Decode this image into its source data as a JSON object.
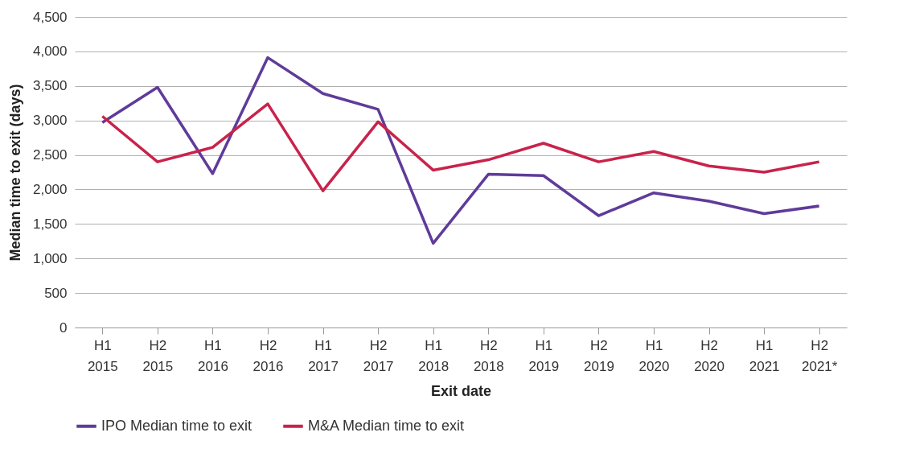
{
  "chart_data": {
    "type": "line",
    "xlabel": "Exit date",
    "ylabel": "Median time to exit (days)",
    "categories": [
      "H1 2015",
      "H2 2015",
      "H1 2016",
      "H2 2016",
      "H1 2017",
      "H2 2017",
      "H1 2018",
      "H2 2018",
      "H1 2019",
      "H2 2019",
      "H1 2020",
      "H2 2020",
      "H1 2021",
      "H2 2021*"
    ],
    "series": [
      {
        "name": "IPO Median time to exit",
        "color": "#5f3b9a",
        "values": [
          2970,
          3480,
          2230,
          3910,
          3390,
          3160,
          1220,
          2220,
          2200,
          1620,
          1950,
          1830,
          1650,
          1760
        ]
      },
      {
        "name": "M&A Median time to exit",
        "color": "#c8234b",
        "values": [
          3060,
          2400,
          2610,
          3240,
          1980,
          2980,
          2280,
          2430,
          2670,
          2400,
          2550,
          2340,
          2250,
          2400
        ]
      }
    ],
    "ylim": [
      0,
      4500
    ],
    "yticks": [
      0,
      500,
      {
        "value": 1000,
        "label": "1,000"
      },
      {
        "value": 1500,
        "label": "1,500"
      },
      {
        "value": 2000,
        "label": "2,000"
      },
      {
        "value": 2500,
        "label": "2,500"
      },
      {
        "value": 3000,
        "label": "3,000"
      },
      {
        "value": 3500,
        "label": "3,500"
      },
      {
        "value": 4000,
        "label": "4,000"
      },
      {
        "value": 4500,
        "label": "4,500"
      }
    ],
    "grid": "y",
    "legend": "bottom",
    "line_style": "solid",
    "marker": "none"
  }
}
